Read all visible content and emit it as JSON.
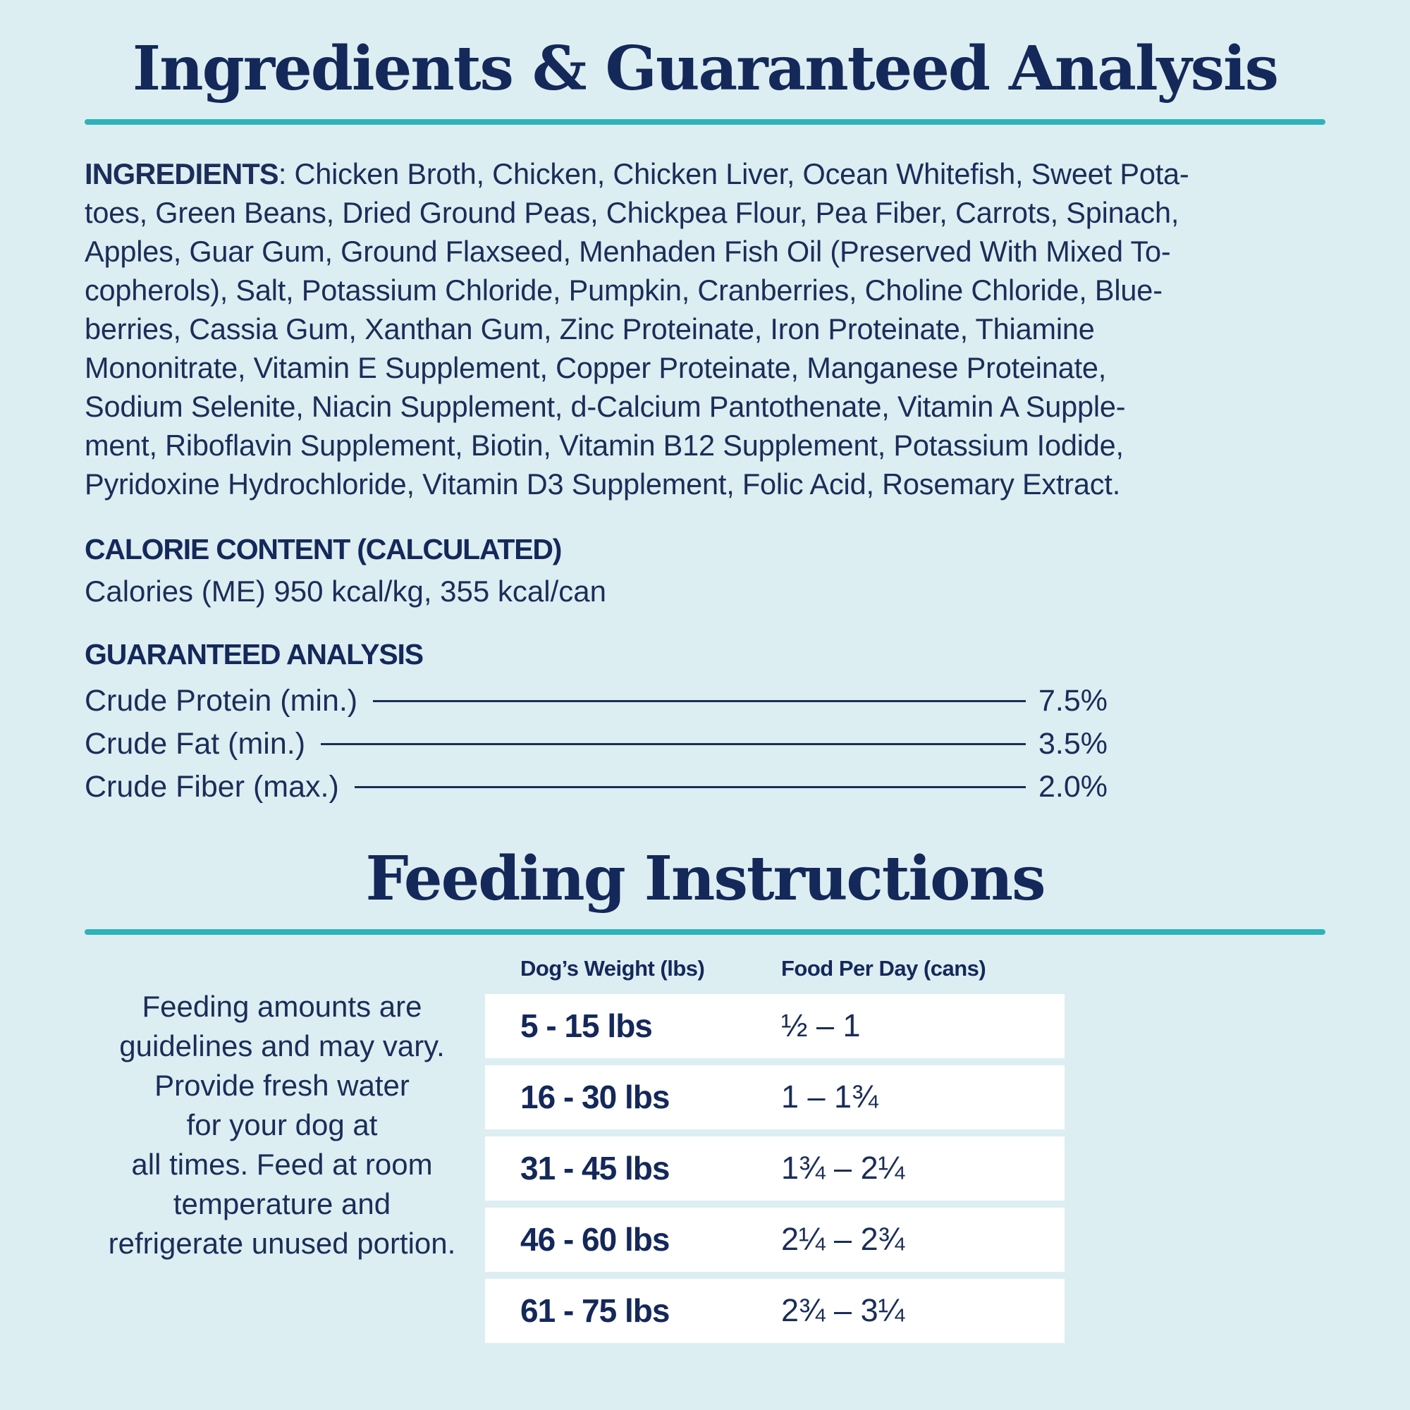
{
  "page": {
    "background_color": "#dceef2",
    "text_color": "#1b2d58",
    "accent_teal": "#2eb3ba",
    "row_band_color": "#ffffff"
  },
  "ingredients_section": {
    "title": "Ingredients & Guaranteed Analysis",
    "ingredients_label": "INGREDIENTS",
    "ingredients_lines": [
      ": Chicken Broth, Chicken, Chicken Liver, Ocean Whitefish, Sweet Pota-",
      "toes, Green Beans, Dried Ground Peas, Chickpea Flour, Pea Fiber, Carrots, Spinach,",
      "Apples, Guar Gum, Ground Flaxseed, Menhaden Fish Oil (Preserved With Mixed To-",
      "copherols), Salt, Potassium Chloride, Pumpkin, Cranberries, Choline Chloride, Blue-",
      "berries, Cassia Gum, Xanthan Gum, Zinc Proteinate, Iron Proteinate, Thiamine",
      "Mononitrate, Vitamin E Supplement, Copper Proteinate, Manganese Proteinate,",
      "Sodium Selenite, Niacin Supplement, d-Calcium Pantothenate, Vitamin A Supple-",
      "ment, Riboflavin Supplement, Biotin, Vitamin B12 Supplement, Potassium Iodide,",
      "Pyridoxine Hydrochloride, Vitamin D3 Supplement, Folic Acid, Rosemary Extract."
    ],
    "calorie_heading": "CALORIE CONTENT (CALCULATED)",
    "calorie_line": "Calories (ME) 950 kcal/kg, 355 kcal/can",
    "analysis_heading": "GUARANTEED ANALYSIS",
    "analysis_rows": [
      {
        "label": "Crude Protein (min.)",
        "value": "7.5%"
      },
      {
        "label": "Crude Fat (min.)",
        "value": "3.5%"
      },
      {
        "label": "Crude Fiber (max.)",
        "value": "2.0%"
      }
    ]
  },
  "feeding_section": {
    "title": "Feeding Instructions",
    "note_lines": [
      "Feeding amounts are",
      "guidelines and may vary.",
      "Provide fresh water",
      "for your dog at",
      "all times. Feed at room",
      "temperature and",
      "refrigerate unused portion."
    ],
    "table": {
      "col1_header": "Dog’s Weight (lbs)",
      "col2_header": "Food Per Day (cans)",
      "rows": [
        {
          "weight": "5 - 15 lbs",
          "food": "½ – 1"
        },
        {
          "weight": "16 - 30 lbs",
          "food": "1 – 1¾"
        },
        {
          "weight": "31 - 45 lbs",
          "food": "1¾ – 2¼"
        },
        {
          "weight": "46 - 60 lbs",
          "food": "2¼ – 2¾"
        },
        {
          "weight": "61 - 75 lbs",
          "food": "2¾ – 3¼"
        }
      ]
    }
  }
}
